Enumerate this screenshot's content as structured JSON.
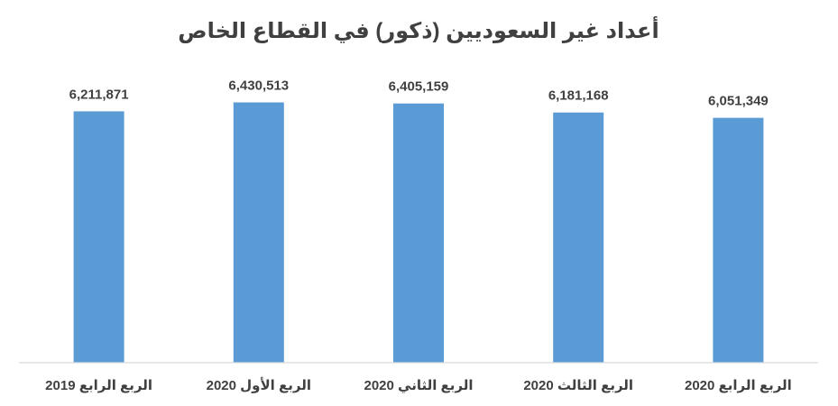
{
  "chart_data": {
    "type": "bar",
    "title": "أعداد غير السعوديين (ذكور) في القطاع الخاص",
    "categories": [
      "الربع الرابع 2019",
      "الربع الأول 2020",
      "الربع الثاني 2020",
      "الربع الثالث 2020",
      "الربع الرابع 2020"
    ],
    "values": [
      6211871,
      6430513,
      6405159,
      6181168,
      6051349
    ],
    "value_labels": [
      "6,211,871",
      "6,430,513",
      "6,405,159",
      "6,181,168",
      "6,051,349"
    ],
    "xlabel": "",
    "ylabel": "",
    "ylim": [
      0,
      7000000
    ],
    "grid": false,
    "legend": "none",
    "bar_color": "#5b9bd5",
    "axis_color": "#d9d9d9",
    "text_color": "#404040"
  }
}
